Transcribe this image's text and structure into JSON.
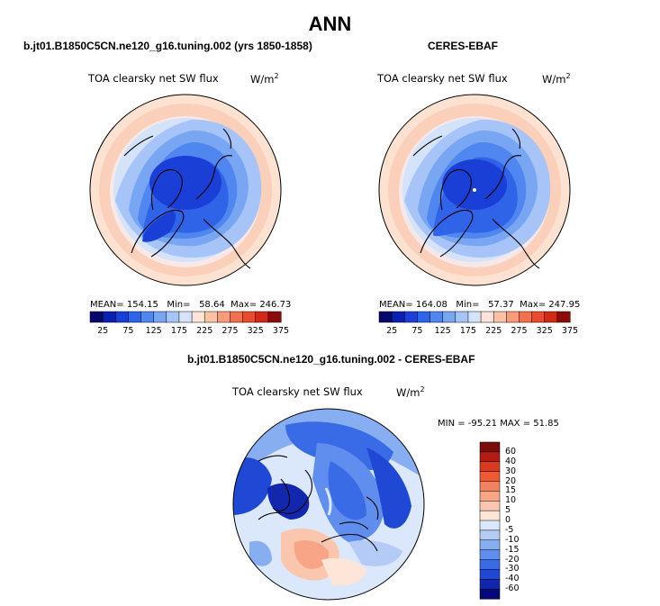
{
  "figure": {
    "title": "ANN",
    "variable": "TOA clearsky net SW flux",
    "units_base": "W/m",
    "units_exp": "2"
  },
  "panels": [
    {
      "id": "model",
      "heading": "b.jt01.B1850C5CN.ne120_g16.tuning.002 (yrs 1850-1858)",
      "mean_label": "MEAN=",
      "mean": "154.15",
      "min_label": "Min=",
      "min": "58.64",
      "max_label": "Max=",
      "max": "246.73"
    },
    {
      "id": "obs",
      "heading": "CERES-EBAF",
      "mean_label": "MEAN=",
      "mean": "164.08",
      "min_label": "Min=",
      "min": "57.37",
      "max_label": "Max=",
      "max": "247.95"
    }
  ],
  "diff": {
    "heading": "b.jt01.B1850C5CN.ne120_g16.tuning.002 - CERES-EBAF",
    "minmax": "MIN = -95.21 MAX =  51.85"
  },
  "chart_data": {
    "type": "heatmap",
    "projection": "polar stereographic (north pole)",
    "field_scale": {
      "tick_labels": [
        "25",
        "75",
        "125",
        "175",
        "225",
        "275",
        "325",
        "375"
      ],
      "colors": [
        "#08086b",
        "#0c1fae",
        "#1a3fd6",
        "#2f63e8",
        "#4f86ef",
        "#79a6f3",
        "#a6c4f7",
        "#d4e3fa",
        "#fde4d6",
        "#fbc3a6",
        "#f79b78",
        "#f3704f",
        "#ea4a2e",
        "#d12a16",
        "#8b0d0a"
      ]
    },
    "diff_scale": {
      "levels": [
        "60",
        "40",
        "30",
        "20",
        "15",
        "10",
        "5",
        "0",
        "-5",
        "-10",
        "-15",
        "-20",
        "-30",
        "-40",
        "-60"
      ],
      "colors": [
        "#7a0c0c",
        "#b31c12",
        "#d93a1e",
        "#ec5b36",
        "#f38160",
        "#f7a586",
        "#fac7ae",
        "#fde6d8",
        "#dbe7fb",
        "#b3cbf6",
        "#88aef2",
        "#5f8eee",
        "#3a6be6",
        "#1f48d4",
        "#1128ae",
        "#05087a"
      ]
    }
  }
}
